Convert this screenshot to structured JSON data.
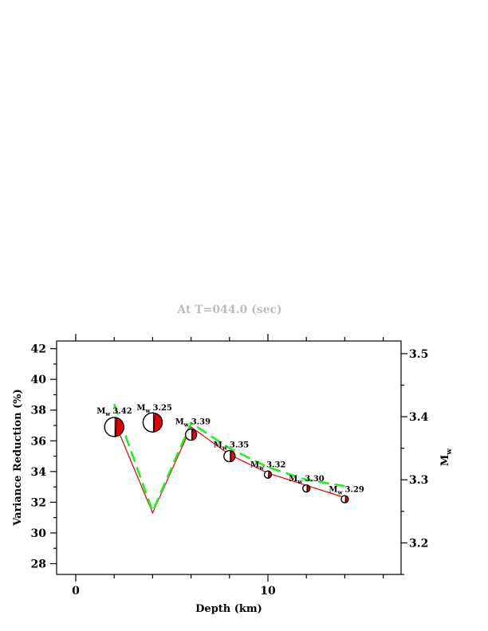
{
  "time_title": "At T=044.0 (sec)",
  "chart_data": {
    "type": "line",
    "title": "At T=044.0 (sec)",
    "xlabel": "Depth (km)",
    "ylabel": "Variance Reduction (%)",
    "y2label": "M",
    "y2label_sub": "w",
    "xlim": [
      -1,
      17
    ],
    "ylim": [
      27.3,
      42.5
    ],
    "y2lim": [
      3.15,
      3.52
    ],
    "x_ticks": [
      0,
      10
    ],
    "x_tick_labels": [
      "0",
      "10"
    ],
    "y_ticks": [
      28,
      30,
      32,
      34,
      36,
      38,
      40,
      42
    ],
    "y_tick_labels": [
      "28",
      "30",
      "32",
      "34",
      "36",
      "38",
      "40",
      "42"
    ],
    "y2_ticks": [
      3.2,
      3.3,
      3.4,
      3.5
    ],
    "y2_tick_labels": [
      "3.2",
      "3.3",
      "3.4",
      "3.5"
    ],
    "series": [
      {
        "role": "variance-reduction",
        "color": "#e00000",
        "x": [
          2,
          4,
          6,
          8,
          10,
          12,
          14
        ],
        "y": [
          37.3,
          31.3,
          36.9,
          35.1,
          33.9,
          33.1,
          32.3
        ]
      },
      {
        "role": "moment-magnitude",
        "axis": "right",
        "color": "#22ee22",
        "x": [
          2,
          4,
          6,
          8,
          10,
          12,
          14
        ],
        "y": [
          3.42,
          3.25,
          3.39,
          3.35,
          3.32,
          3.3,
          3.29
        ],
        "labels": [
          "3.42",
          "3.25",
          "3.39",
          "3.35",
          "3.32",
          "3.30",
          "3.29"
        ]
      }
    ],
    "beachballs": [
      {
        "x": 2,
        "y": 36.9,
        "size": "large"
      },
      {
        "x": 4,
        "y": 37.2,
        "size": "large"
      },
      {
        "x": 6,
        "y": 36.4,
        "size": "medium"
      },
      {
        "x": 8,
        "y": 35.0,
        "size": "medium"
      },
      {
        "x": 10,
        "y": 33.8,
        "size": "small"
      },
      {
        "x": 12,
        "y": 32.9,
        "size": "small"
      },
      {
        "x": 14,
        "y": 32.2,
        "size": "small"
      }
    ],
    "label_prefix": "M",
    "label_sub": "w",
    "grid": false,
    "legend": "none"
  }
}
